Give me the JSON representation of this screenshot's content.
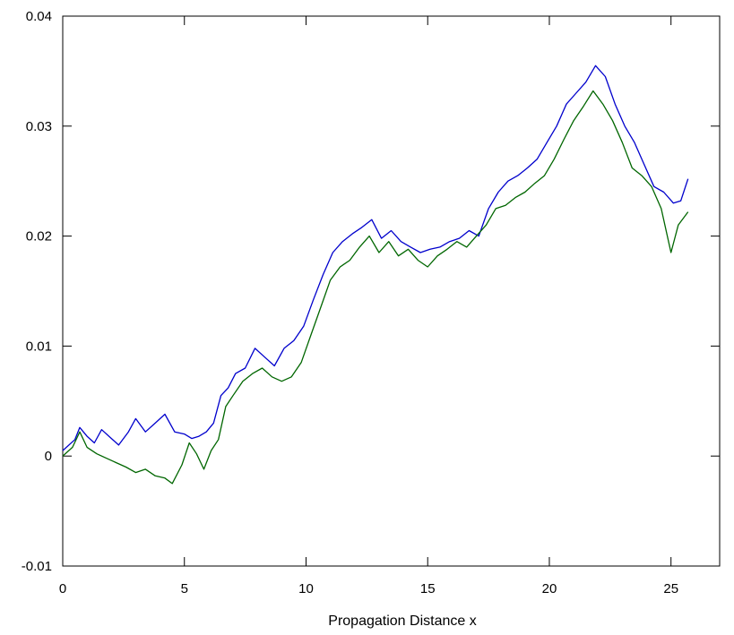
{
  "chart_data": {
    "type": "line",
    "title": "",
    "xlabel": "Propagation Distance x",
    "ylabel": "",
    "xlim": [
      0,
      27
    ],
    "ylim": [
      -0.01,
      0.04
    ],
    "xticks": [
      0,
      5,
      10,
      15,
      20,
      25
    ],
    "xtick_labels": [
      "0",
      "5",
      "10",
      "15",
      "20",
      "25"
    ],
    "yticks": [
      -0.01,
      0,
      0.01,
      0.02,
      0.03,
      0.04
    ],
    "ytick_labels": [
      "-0.01",
      "0",
      "0.01",
      "0.02",
      "0.03",
      "0.04"
    ],
    "grid": false,
    "legend": "none",
    "series": [
      {
        "color": "#0000cc",
        "x": [
          0,
          0.5,
          0.7,
          1.0,
          1.3,
          1.6,
          2.0,
          2.3,
          2.7,
          3.0,
          3.4,
          3.8,
          4.2,
          4.6,
          5.0,
          5.3,
          5.6,
          5.9,
          6.2,
          6.5,
          6.8,
          7.1,
          7.5,
          7.9,
          8.3,
          8.7,
          9.1,
          9.5,
          9.9,
          10.3,
          10.7,
          11.1,
          11.5,
          11.9,
          12.3,
          12.7,
          13.1,
          13.5,
          13.9,
          14.3,
          14.7,
          15.1,
          15.5,
          15.9,
          16.3,
          16.7,
          17.1,
          17.5,
          17.9,
          18.3,
          18.7,
          19.1,
          19.5,
          19.9,
          20.3,
          20.7,
          21.1,
          21.5,
          21.9,
          22.3,
          22.7,
          23.1,
          23.5,
          23.9,
          24.3,
          24.7,
          25.1,
          25.4,
          25.7
        ],
        "y": [
          0.0005,
          0.0015,
          0.0026,
          0.0018,
          0.0012,
          0.0024,
          0.0016,
          0.001,
          0.0022,
          0.0034,
          0.0022,
          0.003,
          0.0038,
          0.0022,
          0.002,
          0.0016,
          0.0018,
          0.0022,
          0.003,
          0.0055,
          0.0062,
          0.0075,
          0.008,
          0.0098,
          0.009,
          0.0082,
          0.0098,
          0.0105,
          0.0118,
          0.0142,
          0.0165,
          0.0185,
          0.0195,
          0.0202,
          0.0208,
          0.0215,
          0.0198,
          0.0205,
          0.0195,
          0.019,
          0.0185,
          0.0188,
          0.019,
          0.0195,
          0.0198,
          0.0205,
          0.02,
          0.0225,
          0.024,
          0.025,
          0.0255,
          0.0262,
          0.027,
          0.0285,
          0.03,
          0.032,
          0.033,
          0.034,
          0.0355,
          0.0345,
          0.032,
          0.03,
          0.0285,
          0.0265,
          0.0245,
          0.024,
          0.023,
          0.0232,
          0.0252
        ]
      },
      {
        "color": "#006600",
        "x": [
          0,
          0.4,
          0.7,
          1.0,
          1.4,
          1.8,
          2.2,
          2.6,
          3.0,
          3.4,
          3.8,
          4.2,
          4.5,
          4.9,
          5.2,
          5.5,
          5.8,
          6.1,
          6.4,
          6.7,
          7.0,
          7.4,
          7.8,
          8.2,
          8.6,
          9.0,
          9.4,
          9.8,
          10.2,
          10.6,
          11.0,
          11.4,
          11.8,
          12.2,
          12.6,
          13.0,
          13.4,
          13.8,
          14.2,
          14.6,
          15.0,
          15.4,
          15.8,
          16.2,
          16.6,
          17.0,
          17.4,
          17.8,
          18.2,
          18.6,
          19.0,
          19.4,
          19.8,
          20.2,
          20.6,
          21.0,
          21.4,
          21.8,
          22.2,
          22.6,
          23.0,
          23.4,
          23.8,
          24.2,
          24.6,
          25.0,
          25.3,
          25.7
        ],
        "y": [
          0.0,
          0.0008,
          0.0022,
          0.0008,
          0.0002,
          -0.0002,
          -0.0006,
          -0.001,
          -0.0015,
          -0.0012,
          -0.0018,
          -0.002,
          -0.0025,
          -0.0008,
          0.0012,
          0.0002,
          -0.0012,
          0.0005,
          0.0015,
          0.0045,
          0.0055,
          0.0068,
          0.0075,
          0.008,
          0.0072,
          0.0068,
          0.0072,
          0.0085,
          0.011,
          0.0135,
          0.016,
          0.0172,
          0.0178,
          0.019,
          0.02,
          0.0185,
          0.0195,
          0.0182,
          0.0188,
          0.0178,
          0.0172,
          0.0182,
          0.0188,
          0.0195,
          0.019,
          0.02,
          0.021,
          0.0225,
          0.0228,
          0.0235,
          0.024,
          0.0248,
          0.0255,
          0.027,
          0.0288,
          0.0305,
          0.0318,
          0.0332,
          0.032,
          0.0305,
          0.0285,
          0.0262,
          0.0255,
          0.0245,
          0.0225,
          0.0185,
          0.021,
          0.0222
        ]
      }
    ]
  }
}
